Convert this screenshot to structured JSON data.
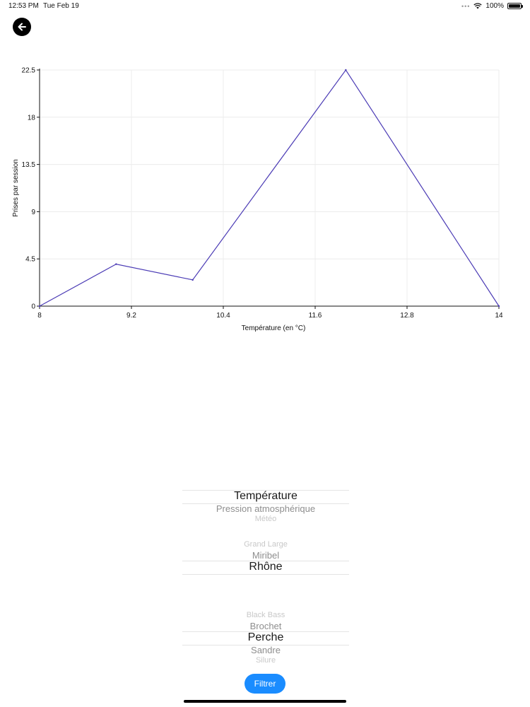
{
  "status_bar": {
    "time": "12:53 PM",
    "date": "Tue Feb 19",
    "battery": "100%",
    "icons": [
      "dots-icon",
      "wifi-icon",
      "battery-icon"
    ]
  },
  "back_button": {
    "icon": "arrow-left-icon"
  },
  "chart_data": {
    "type": "line",
    "title": "",
    "xlabel": "Température (en °C)",
    "ylabel": "Prises par session",
    "xlim": [
      8,
      14
    ],
    "ylim": [
      0,
      22.5
    ],
    "x_ticks": [
      "8",
      "9.2",
      "10.4",
      "11.6",
      "12.8",
      "14"
    ],
    "y_ticks": [
      "0",
      "4.5",
      "9",
      "13.5",
      "18",
      "22.5"
    ],
    "x": [
      8,
      9,
      10,
      12,
      14
    ],
    "series": [
      {
        "values": [
          0,
          4,
          2.5,
          22.5,
          0
        ],
        "color": "#4b3bb5"
      }
    ],
    "grid": true
  },
  "pickers": [
    {
      "name": "criteria",
      "items": [
        "Température",
        "Pression atmosphérique",
        "Météo"
      ],
      "selected_index": 0
    },
    {
      "name": "location",
      "items": [
        "Grand Large",
        "Miribel",
        "Rhône"
      ],
      "selected_index": 2
    },
    {
      "name": "species",
      "items": [
        "Black Bass",
        "Brochet",
        "Perche",
        "Sandre",
        "Silure"
      ],
      "selected_index": 2
    }
  ],
  "filter_button": {
    "label": "Filtrer",
    "color": "#1a8cff"
  }
}
